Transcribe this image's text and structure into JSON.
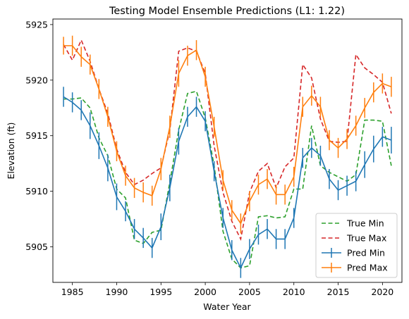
{
  "chart_data": {
    "type": "line",
    "title": "Testing Model Ensemble Predictions (L1: 1.22)",
    "xlabel": "Water Year",
    "ylabel": "Elevation (ft)",
    "xlim": [
      1982.8,
      2022.2
    ],
    "ylim": [
      5901.8,
      5925.5
    ],
    "xticks": [
      1985,
      1990,
      1995,
      2000,
      2005,
      2010,
      2015,
      2020
    ],
    "yticks": [
      5905,
      5910,
      5915,
      5920,
      5925
    ],
    "legend_position": "lower right",
    "x": [
      1984,
      1985,
      1986,
      1987,
      1988,
      1989,
      1990,
      1991,
      1992,
      1993,
      1994,
      1995,
      1996,
      1997,
      1998,
      1999,
      2000,
      2001,
      2002,
      2003,
      2004,
      2005,
      2006,
      2007,
      2008,
      2009,
      2010,
      2011,
      2012,
      2013,
      2014,
      2015,
      2016,
      2017,
      2018,
      2019,
      2020,
      2021
    ],
    "series": [
      {
        "name": "True Min",
        "style": "dashed",
        "color": "#2ca02c",
        "values": [
          5918.3,
          5918.3,
          5918.4,
          5917.5,
          5914.8,
          5913.2,
          5910.2,
          5909.4,
          5905.6,
          5905.3,
          5906.3,
          5906.5,
          5910.8,
          5915.5,
          5918.8,
          5919.0,
          5916.6,
          5912.3,
          5906.4,
          5903.9,
          5903.1,
          5903.3,
          5907.7,
          5907.8,
          5907.6,
          5907.7,
          5910.2,
          5910.2,
          5915.9,
          5912.3,
          5911.7,
          5911.3,
          5910.9,
          5911.5,
          5916.4,
          5916.4,
          5916.3,
          5912.3
        ]
      },
      {
        "name": "True Max",
        "style": "dashed",
        "color": "#d62728",
        "values": [
          5923.2,
          5921.8,
          5923.6,
          5921.7,
          5919.2,
          5917.0,
          5913.8,
          5911.7,
          5910.6,
          5911.0,
          5911.6,
          5912.1,
          5915.5,
          5922.6,
          5922.9,
          5922.6,
          5920.6,
          5914.1,
          5909.9,
          5907.3,
          5905.7,
          5909.9,
          5911.8,
          5912.5,
          5910.3,
          5912.2,
          5913.0,
          5921.4,
          5920.2,
          5916.5,
          5914.5,
          5914.4,
          5914.5,
          5922.3,
          5921.1,
          5920.5,
          5919.8,
          5917.0
        ]
      },
      {
        "name": "Pred Min",
        "style": "solid",
        "color": "#1f77b4",
        "values": [
          5918.5,
          5918.0,
          5917.3,
          5915.9,
          5914.1,
          5912.1,
          5909.5,
          5908.2,
          5906.6,
          5905.8,
          5904.9,
          5906.8,
          5910.3,
          5914.5,
          5916.7,
          5917.6,
          5916.3,
          5911.8,
          5907.6,
          5904.7,
          5903.1,
          5904.8,
          5906.1,
          5906.6,
          5905.7,
          5905.7,
          5907.6,
          5913.0,
          5913.9,
          5913.2,
          5911.1,
          5910.1,
          5910.5,
          5910.9,
          5912.4,
          5913.8,
          5914.9,
          5914.6
        ]
      },
      {
        "name": "Pred Max",
        "style": "solid",
        "color": "#ff7f0e",
        "values": [
          5923.1,
          5923.1,
          5922.1,
          5921.4,
          5919.2,
          5916.7,
          5913.6,
          5911.4,
          5910.3,
          5909.9,
          5909.6,
          5912.0,
          5915.8,
          5920.6,
          5922.2,
          5922.7,
          5920.3,
          5915.8,
          5911.0,
          5908.3,
          5907.1,
          5909.1,
          5910.6,
          5911.1,
          5909.7,
          5909.7,
          5911.3,
          5917.6,
          5918.6,
          5917.6,
          5914.6,
          5913.9,
          5914.7,
          5915.9,
          5917.5,
          5918.9,
          5919.7,
          5919.4
        ]
      }
    ],
    "errorbars": {
      "Pred Min": [
        0.9,
        0.9,
        0.9,
        1.2,
        1.2,
        1.2,
        1.2,
        0.9,
        0.9,
        0.9,
        0.9,
        1.2,
        1.2,
        1.2,
        0.9,
        0.9,
        0.9,
        0.9,
        0.9,
        0.9,
        0.9,
        0.9,
        0.9,
        0.9,
        0.9,
        0.9,
        0.9,
        0.9,
        0.9,
        0.9,
        0.9,
        0.9,
        0.9,
        0.9,
        1.2,
        1.2,
        0.9,
        1.2
      ],
      "Pred Max": [
        0.8,
        0.9,
        0.9,
        0.9,
        0.9,
        0.9,
        0.9,
        0.9,
        0.9,
        0.9,
        0.9,
        1.0,
        1.0,
        1.2,
        0.9,
        0.9,
        0.9,
        0.9,
        0.9,
        0.9,
        0.9,
        0.9,
        0.9,
        0.9,
        0.9,
        0.9,
        0.9,
        0.9,
        0.9,
        0.9,
        0.9,
        0.9,
        0.9,
        0.9,
        0.9,
        0.9,
        0.9,
        0.9
      ]
    }
  }
}
